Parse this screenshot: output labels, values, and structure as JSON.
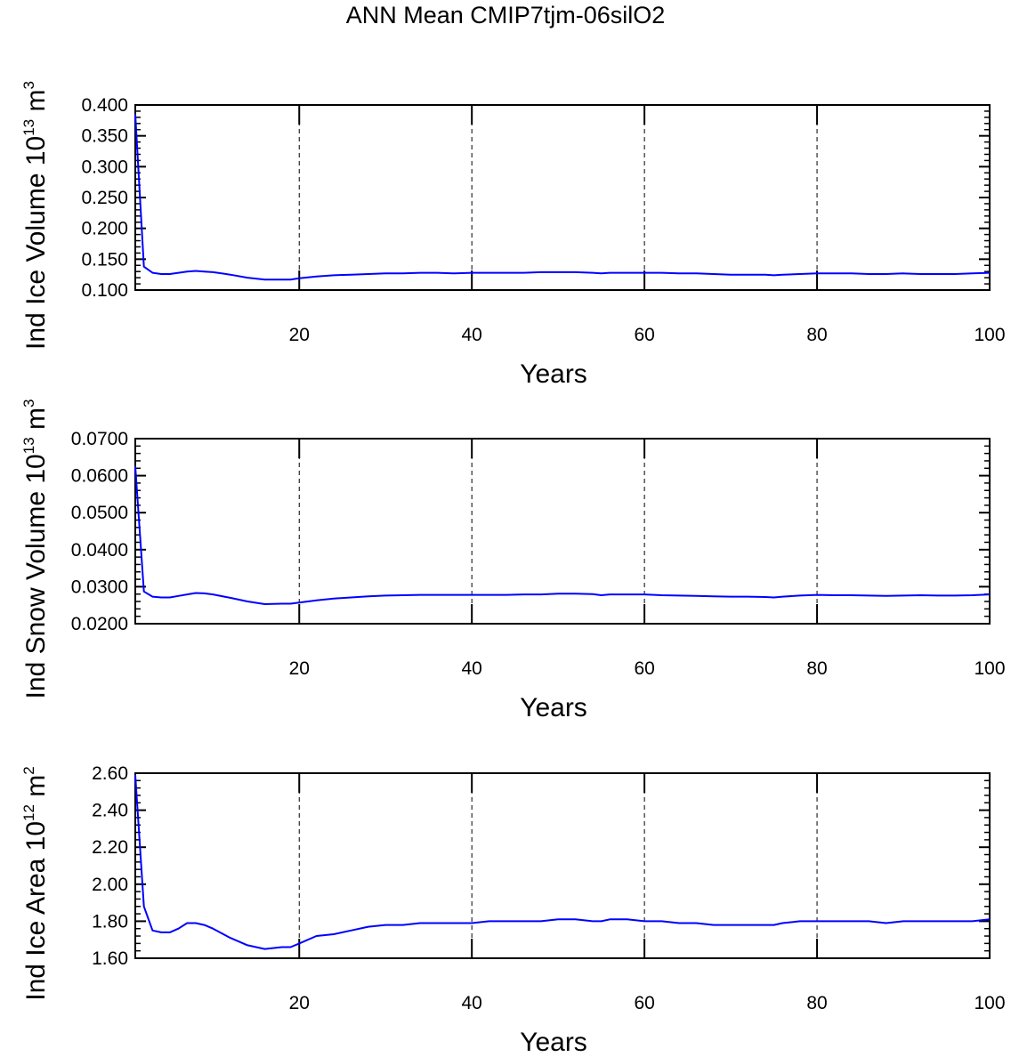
{
  "title": "ANN Mean CMIP7tjm-06silO2",
  "colors": {
    "series": "#0000ff",
    "axes": "#000000",
    "grid": "#000000"
  },
  "chart_data": [
    {
      "type": "line",
      "ylabel": {
        "text": "Ind Ice Volume 10",
        "sup": "13",
        "unit": " m",
        "unit_sup": "3"
      },
      "xlabel": "Years",
      "xlim": [
        1,
        100
      ],
      "ylim": [
        0.1,
        0.4
      ],
      "xticks": [
        20,
        40,
        60,
        80,
        100
      ],
      "yticks": [
        "0.100",
        "0.150",
        "0.200",
        "0.250",
        "0.300",
        "0.350",
        "0.400"
      ],
      "vgrid_dashed": [
        20,
        40,
        60,
        80
      ],
      "series": [
        {
          "x": [
            1,
            2,
            3,
            4,
            5,
            6,
            7,
            8,
            9,
            10,
            12,
            14,
            16,
            18,
            19,
            20,
            22,
            24,
            26,
            28,
            30,
            32,
            34,
            36,
            38,
            40,
            42,
            44,
            46,
            48,
            50,
            52,
            54,
            55,
            56,
            58,
            60,
            62,
            64,
            66,
            68,
            70,
            72,
            74,
            75,
            76,
            78,
            80,
            82,
            84,
            86,
            88,
            90,
            92,
            94,
            96,
            98,
            100
          ],
          "values": [
            0.385,
            0.138,
            0.128,
            0.126,
            0.126,
            0.128,
            0.13,
            0.131,
            0.13,
            0.129,
            0.125,
            0.12,
            0.117,
            0.117,
            0.117,
            0.119,
            0.122,
            0.124,
            0.125,
            0.126,
            0.127,
            0.127,
            0.128,
            0.128,
            0.127,
            0.128,
            0.128,
            0.128,
            0.128,
            0.129,
            0.129,
            0.129,
            0.128,
            0.127,
            0.128,
            0.128,
            0.128,
            0.128,
            0.127,
            0.127,
            0.126,
            0.125,
            0.125,
            0.125,
            0.124,
            0.125,
            0.126,
            0.127,
            0.127,
            0.127,
            0.126,
            0.126,
            0.127,
            0.126,
            0.126,
            0.126,
            0.127,
            0.128
          ]
        }
      ]
    },
    {
      "type": "line",
      "ylabel": {
        "text": "Ind Snow Volume 10",
        "sup": "13",
        "unit": " m",
        "unit_sup": "3"
      },
      "xlabel": "Years",
      "xlim": [
        1,
        100
      ],
      "ylim": [
        0.02,
        0.07
      ],
      "xticks": [
        20,
        40,
        60,
        80,
        100
      ],
      "yticks": [
        "0.0200",
        "0.0300",
        "0.0400",
        "0.0500",
        "0.0600",
        "0.0700"
      ],
      "vgrid_dashed": [
        20,
        40,
        60,
        80
      ],
      "series": [
        {
          "x": [
            1,
            2,
            3,
            4,
            5,
            6,
            7,
            8,
            9,
            10,
            12,
            14,
            16,
            18,
            19,
            20,
            22,
            24,
            26,
            28,
            30,
            32,
            34,
            36,
            38,
            40,
            42,
            44,
            46,
            48,
            50,
            52,
            54,
            55,
            56,
            58,
            60,
            62,
            64,
            66,
            68,
            70,
            72,
            74,
            75,
            76,
            78,
            80,
            82,
            84,
            86,
            88,
            90,
            92,
            94,
            96,
            98,
            100
          ],
          "values": [
            0.0625,
            0.0287,
            0.0273,
            0.0271,
            0.0271,
            0.0275,
            0.0279,
            0.0283,
            0.0282,
            0.0279,
            0.027,
            0.026,
            0.0253,
            0.0254,
            0.0254,
            0.0257,
            0.0263,
            0.0268,
            0.0271,
            0.0274,
            0.0276,
            0.0277,
            0.0278,
            0.0278,
            0.0278,
            0.0278,
            0.0278,
            0.0278,
            0.0279,
            0.0279,
            0.0281,
            0.0281,
            0.028,
            0.0277,
            0.0279,
            0.0279,
            0.0279,
            0.0277,
            0.0276,
            0.0275,
            0.0274,
            0.0273,
            0.0273,
            0.0272,
            0.0271,
            0.0273,
            0.0276,
            0.0278,
            0.0277,
            0.0277,
            0.0276,
            0.0275,
            0.0276,
            0.0277,
            0.0276,
            0.0276,
            0.0277,
            0.0279
          ]
        }
      ]
    },
    {
      "type": "line",
      "ylabel": {
        "text": "Ind Ice Area 10",
        "sup": "12",
        "unit": " m",
        "unit_sup": "2"
      },
      "xlabel": "Years",
      "xlim": [
        1,
        100
      ],
      "ylim": [
        1.6,
        2.6
      ],
      "xticks": [
        20,
        40,
        60,
        80,
        100
      ],
      "yticks": [
        "1.60",
        "1.80",
        "2.00",
        "2.20",
        "2.40",
        "2.60"
      ],
      "vgrid_dashed": [
        20,
        40,
        60,
        80
      ],
      "series": [
        {
          "x": [
            1,
            2,
            3,
            4,
            5,
            6,
            7,
            8,
            9,
            10,
            12,
            14,
            16,
            18,
            19,
            20,
            22,
            24,
            26,
            28,
            30,
            32,
            34,
            36,
            38,
            40,
            42,
            44,
            46,
            48,
            50,
            52,
            54,
            55,
            56,
            58,
            60,
            62,
            64,
            66,
            68,
            70,
            72,
            74,
            75,
            76,
            78,
            80,
            82,
            84,
            86,
            88,
            90,
            92,
            94,
            96,
            98,
            100
          ],
          "values": [
            2.59,
            1.88,
            1.75,
            1.74,
            1.74,
            1.76,
            1.79,
            1.79,
            1.78,
            1.76,
            1.71,
            1.67,
            1.65,
            1.66,
            1.66,
            1.68,
            1.72,
            1.73,
            1.75,
            1.77,
            1.78,
            1.78,
            1.79,
            1.79,
            1.79,
            1.79,
            1.8,
            1.8,
            1.8,
            1.8,
            1.81,
            1.81,
            1.8,
            1.8,
            1.81,
            1.81,
            1.8,
            1.8,
            1.79,
            1.79,
            1.78,
            1.78,
            1.78,
            1.78,
            1.78,
            1.79,
            1.8,
            1.8,
            1.8,
            1.8,
            1.8,
            1.79,
            1.8,
            1.8,
            1.8,
            1.8,
            1.8,
            1.81
          ]
        }
      ]
    }
  ]
}
